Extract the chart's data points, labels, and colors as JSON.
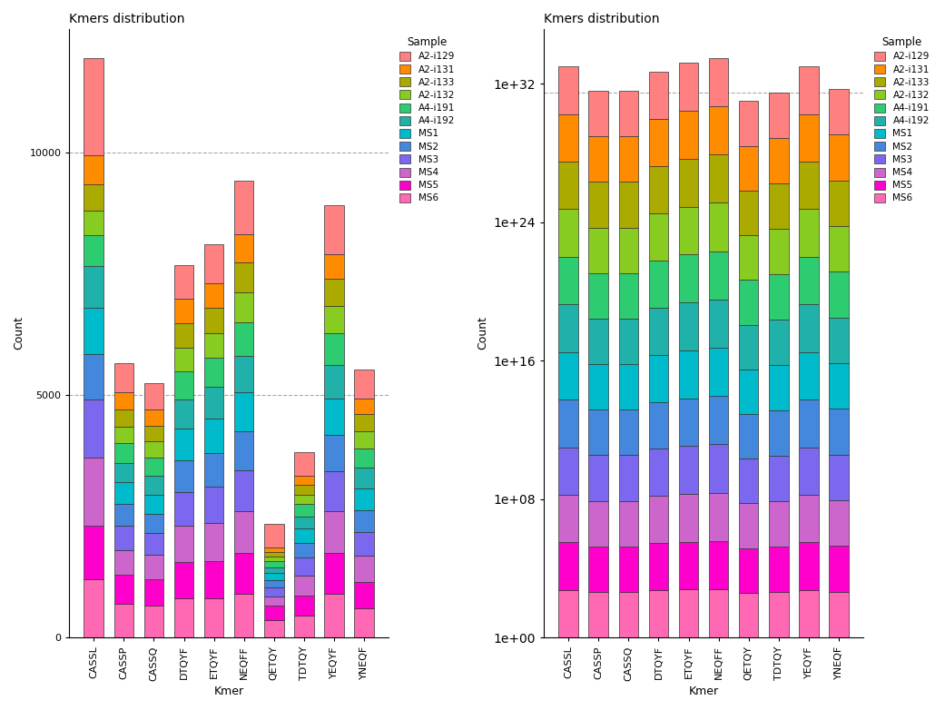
{
  "kmers": [
    "CASSL",
    "CASSP",
    "CASSQ",
    "DTQYF",
    "ETQYF",
    "NEQFF",
    "QETQY",
    "TDTQY",
    "YEQYF",
    "YNEQF"
  ],
  "stack_order": [
    "MS6",
    "MS5",
    "MS4",
    "MS3",
    "MS2",
    "MS1",
    "A4-i192",
    "A4-i191",
    "A2-i132",
    "A2-i133",
    "A2-i131",
    "A2-i129"
  ],
  "stack_colors": [
    "#FF69B4",
    "#FF00CC",
    "#CC66CC",
    "#7B68EE",
    "#4488DD",
    "#00BBCC",
    "#20B2AA",
    "#2ECC71",
    "#88CC22",
    "#AAAA00",
    "#FF8C00",
    "#FF8080"
  ],
  "legend_order": [
    "A2-i129",
    "A2-i131",
    "A2-i133",
    "A2-i132",
    "A4-i191",
    "A4-i192",
    "MS1",
    "MS2",
    "MS3",
    "MS4",
    "MS5",
    "MS6"
  ],
  "legend_colors": [
    "#FF8080",
    "#FF8C00",
    "#AAAA00",
    "#88CC22",
    "#2ECC71",
    "#20B2AA",
    "#00BBCC",
    "#4488DD",
    "#7B68EE",
    "#CC66CC",
    "#FF00CC",
    "#FF69B4"
  ],
  "linear_data": {
    "CASSL": [
      1200,
      1100,
      1400,
      1200,
      950,
      950,
      850,
      650,
      500,
      550,
      600,
      2000
    ],
    "CASSP": [
      700,
      600,
      500,
      500,
      450,
      450,
      400,
      400,
      350,
      350,
      350,
      600
    ],
    "CASSQ": [
      650,
      550,
      500,
      450,
      400,
      400,
      380,
      380,
      330,
      330,
      330,
      550
    ],
    "DTQYF": [
      800,
      750,
      750,
      700,
      650,
      650,
      600,
      580,
      500,
      500,
      500,
      700
    ],
    "ETQYF": [
      800,
      780,
      780,
      750,
      700,
      700,
      650,
      600,
      520,
      520,
      500,
      800
    ],
    "NEQFF": [
      900,
      850,
      850,
      850,
      800,
      800,
      750,
      700,
      620,
      620,
      580,
      1100
    ],
    "QETQY": [
      350,
      300,
      200,
      180,
      150,
      150,
      120,
      120,
      100,
      100,
      80,
      500
    ],
    "TDTQY": [
      450,
      420,
      400,
      380,
      300,
      300,
      250,
      250,
      200,
      200,
      180,
      500
    ],
    "YEQYF": [
      900,
      850,
      850,
      820,
      750,
      750,
      700,
      650,
      560,
      560,
      520,
      1000
    ],
    "YNEQF": [
      600,
      550,
      530,
      500,
      450,
      450,
      420,
      400,
      350,
      350,
      320,
      600
    ]
  },
  "log_totals": {
    "CASSL": 33.0,
    "CASSP": 31.6,
    "CASSQ": 31.6,
    "DTQYF": 32.7,
    "ETQYF": 33.2,
    "NEQFF": 33.5,
    "QETQY": 31.0,
    "TDTQY": 31.5,
    "YEQYF": 33.0,
    "YNEQF": 31.7
  },
  "title": "Kmers distribution",
  "xlabel": "Kmer",
  "ylabel": "Count",
  "bg": "#FFFFFF"
}
